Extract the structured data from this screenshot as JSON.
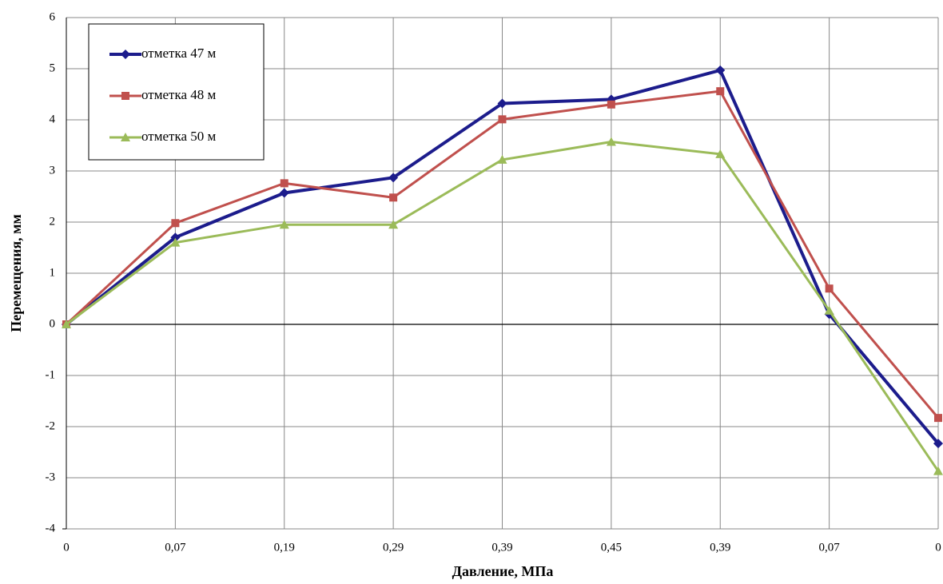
{
  "chart_data": {
    "type": "line",
    "x_label": "Давление, МПа",
    "y_label": "Перемещения, мм",
    "categories": [
      "0",
      "0,07",
      "0,19",
      "0,29",
      "0,39",
      "0,45",
      "0,39",
      "0,07",
      "0"
    ],
    "series": [
      {
        "name": "отметка 47 м",
        "color": "#1c1c8c",
        "marker": "diamond",
        "values": [
          0,
          1.7,
          2.57,
          2.87,
          4.32,
          4.4,
          4.97,
          0.2,
          -2.33
        ]
      },
      {
        "name": "отметка 48 м",
        "color": "#c0504d",
        "marker": "square",
        "values": [
          0,
          1.98,
          2.76,
          2.48,
          4.01,
          4.3,
          4.56,
          0.7,
          -1.83
        ]
      },
      {
        "name": "отметка 50 м",
        "color": "#9bbb59",
        "marker": "triangle",
        "values": [
          0,
          1.6,
          1.95,
          1.95,
          3.22,
          3.57,
          3.33,
          0.27,
          -2.87
        ]
      }
    ],
    "ylim": [
      -4,
      6
    ],
    "yticks": [
      -4,
      -3,
      -2,
      -1,
      0,
      1,
      2,
      3,
      4,
      5,
      6
    ],
    "grid": true,
    "legend": "upper left"
  }
}
